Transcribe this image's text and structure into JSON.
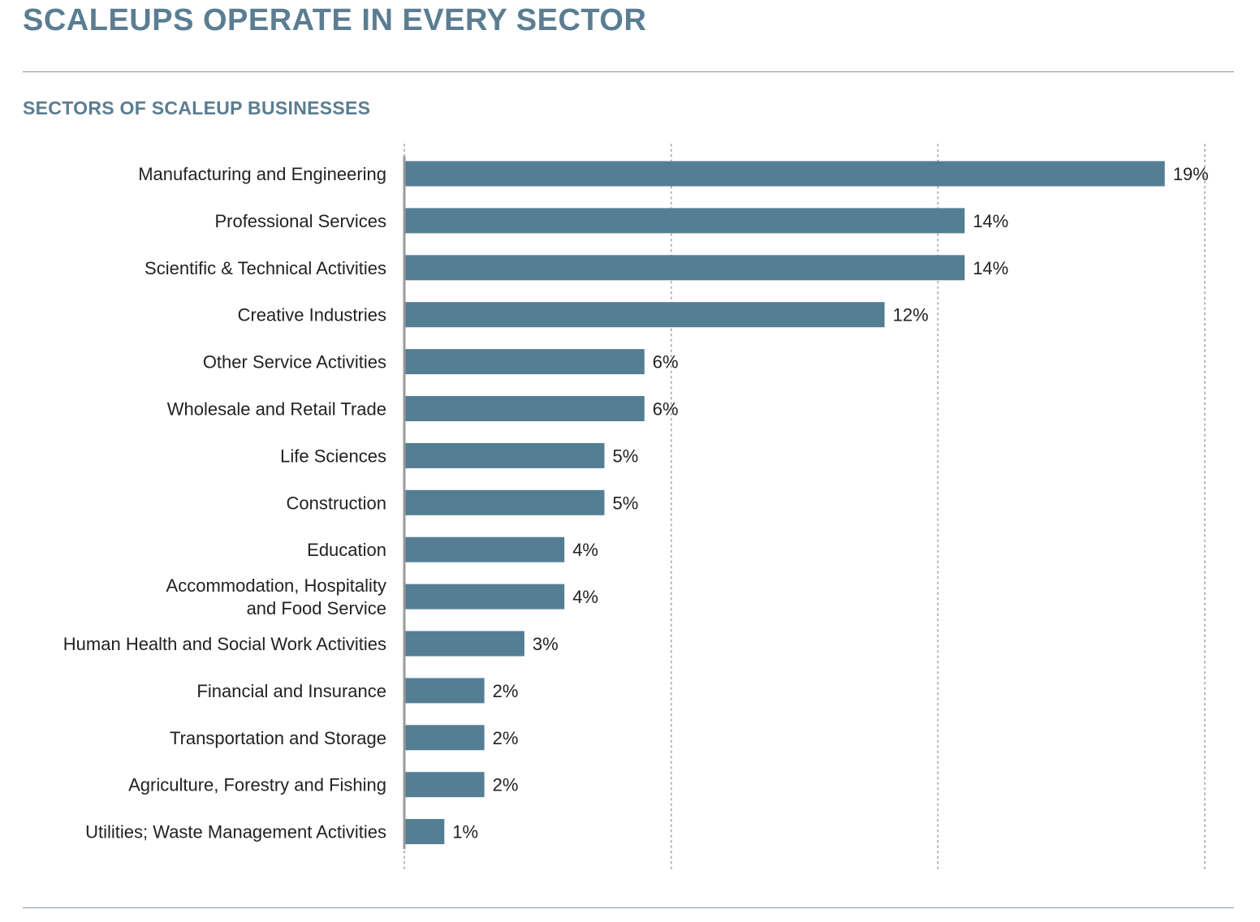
{
  "page_title": "SCALEUPS OPERATE IN EVERY SECTOR",
  "colors": {
    "bar": "#547e94",
    "title": "#5a7d91",
    "rule": "#7d98a8",
    "grid": "#b5b5b5",
    "axis": "#9a9a9a"
  },
  "chart_data": {
    "type": "bar",
    "orientation": "horizontal",
    "title": "SECTORS OF SCALEUP BUSINESSES",
    "xlabel": "",
    "ylabel": "",
    "xlim": [
      0,
      20
    ],
    "grid": "vertical dotted",
    "legend": "none",
    "categories": [
      [
        "Manufacturing and Engineering"
      ],
      [
        "Professional Services"
      ],
      [
        "Scientific & Technical Activities"
      ],
      [
        "Creative Industries"
      ],
      [
        "Other Service Activities"
      ],
      [
        "Wholesale and Retail Trade"
      ],
      [
        "Life Sciences"
      ],
      [
        "Construction"
      ],
      [
        "Education"
      ],
      [
        "Accommodation, Hospitality",
        "and Food Service"
      ],
      [
        "Human Health and Social Work Activities"
      ],
      [
        "Financial and Insurance"
      ],
      [
        "Transportation and Storage"
      ],
      [
        "Agriculture, Forestry and Fishing"
      ],
      [
        "Utilities; Waste Management Activities"
      ]
    ],
    "values": [
      19,
      14,
      14,
      12,
      6,
      6,
      5,
      5,
      4,
      4,
      3,
      2,
      2,
      2,
      1
    ],
    "value_labels": [
      "19%",
      "14%",
      "14%",
      "12%",
      "6%",
      "6%",
      "5%",
      "5%",
      "4%",
      "4%",
      "3%",
      "2%",
      "2%",
      "2%",
      "1%"
    ]
  }
}
